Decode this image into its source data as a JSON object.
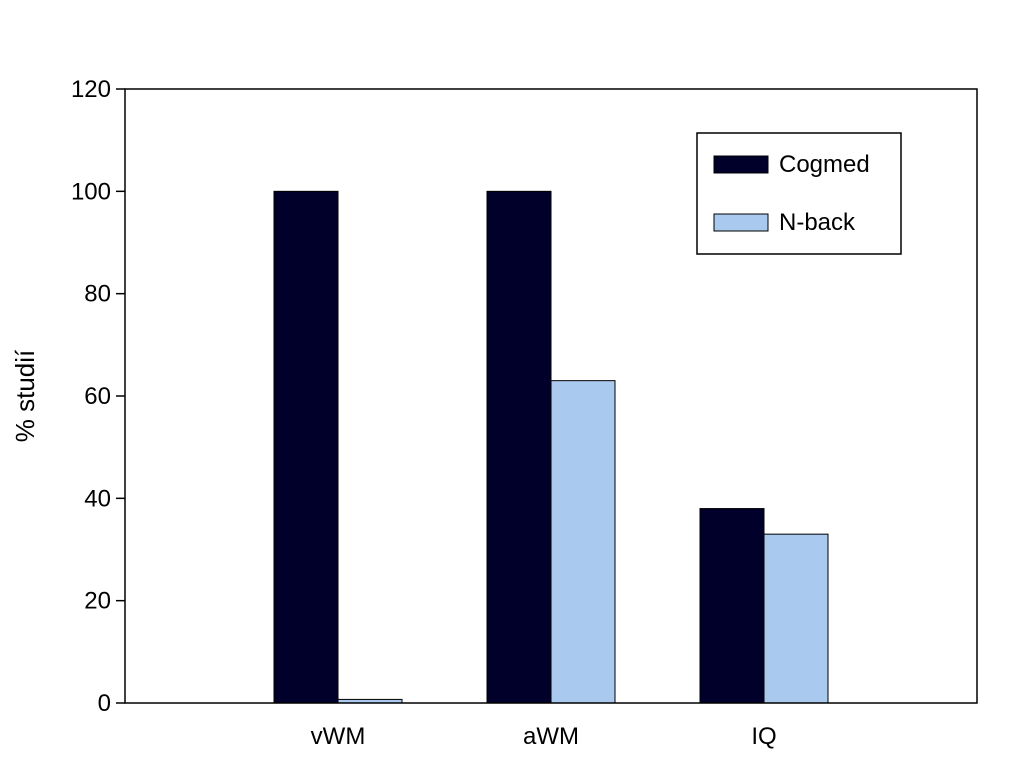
{
  "chart_data": {
    "type": "bar",
    "title": "",
    "xlabel": "",
    "ylabel": "% studií",
    "categories": [
      "vWM",
      "aWM",
      "IQ"
    ],
    "series": [
      {
        "name": "Cogmed",
        "values": [
          100,
          100,
          38
        ],
        "color": "#00002b"
      },
      {
        "name": "N-back",
        "values": [
          0.7,
          63,
          33
        ],
        "color": "#a9c9ef"
      }
    ],
    "ylim": [
      0,
      120
    ],
    "yticks": [
      0,
      20,
      40,
      60,
      80,
      100,
      120
    ],
    "grid": false,
    "legend_position": "top-right"
  }
}
